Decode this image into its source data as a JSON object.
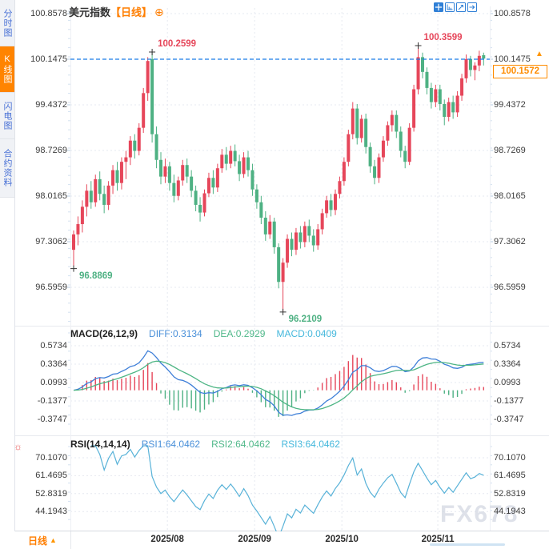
{
  "app": {
    "watermark": "FX678"
  },
  "header": {
    "symbol": "美元指数",
    "period_tag": "【日线】",
    "plus_icon": "⊕"
  },
  "sidebar": {
    "tabs": [
      {
        "label": "分时图",
        "active": false
      },
      {
        "label": "K线图",
        "active": true
      },
      {
        "label": "闪电图",
        "active": false
      },
      {
        "label": "合约资料",
        "active": false
      }
    ]
  },
  "toolbar": {
    "icons": [
      "crosshair",
      "axis-zoom",
      "box-zoom",
      "pan-right"
    ],
    "settings_glyph": "☼"
  },
  "bottom_bar": {
    "period_label": "日线",
    "arrow": "▲"
  },
  "colors": {
    "up": "#e6465a",
    "down": "#4eb183",
    "ref_line": "#1b7ce6",
    "accent": "#ff7e00",
    "diff_line": "#3e7fd8",
    "dea_line": "#4db584",
    "rsi_line": "#58b2d8",
    "grid": "#e6e8f0",
    "axis_text": "#3c3c3c",
    "watermark": "#d3d8e2",
    "sidebar_text": "#4a72d6",
    "sidebar_active_bg": "#ff8400",
    "icon_blue": "#2f7fd6"
  },
  "chart_data": [
    {
      "type": "candlestick",
      "symbol": "美元指数",
      "period": "日线",
      "y_ticks": [
        100.8578,
        100.1475,
        99.4372,
        98.7269,
        98.0165,
        97.3062,
        96.5959
      ],
      "reference_line": 100.1475,
      "last_price": "100.1572",
      "up_arrow": "▲",
      "annotations": [
        {
          "index": 18,
          "price": 100.2599,
          "label": "100.2599",
          "side": "above",
          "color": "#e6465a"
        },
        {
          "index": 79,
          "price": 100.3599,
          "label": "100.3599",
          "side": "above",
          "color": "#e6465a"
        },
        {
          "index": 0,
          "price": 96.8869,
          "label": "96.8869",
          "side": "below",
          "color": "#4eb183"
        },
        {
          "index": 48,
          "price": 96.2109,
          "label": "96.2109",
          "side": "below",
          "color": "#4eb183"
        }
      ],
      "x_axis": {
        "month_labels": [
          "2025/08",
          "2025/09",
          "2025/10",
          "2025/11"
        ],
        "month_start_indices": [
          22,
          42,
          62,
          84
        ]
      },
      "ohlc": [
        [
          97.18,
          97.48,
          96.8869,
          97.42
        ],
        [
          97.42,
          97.7,
          97.25,
          97.58
        ],
        [
          97.58,
          97.95,
          97.45,
          97.85
        ],
        [
          97.85,
          98.2,
          97.7,
          98.1
        ],
        [
          98.1,
          98.25,
          97.82,
          97.92
        ],
        [
          97.92,
          98.35,
          97.85,
          98.28
        ],
        [
          98.28,
          98.4,
          97.95,
          98.05
        ],
        [
          98.05,
          98.18,
          97.75,
          97.88
        ],
        [
          97.88,
          98.25,
          97.8,
          98.18
        ],
        [
          98.18,
          98.5,
          98.05,
          98.42
        ],
        [
          98.42,
          98.55,
          98.1,
          98.22
        ],
        [
          98.22,
          98.62,
          98.12,
          98.55
        ],
        [
          98.55,
          98.72,
          98.28,
          98.62
        ],
        [
          98.62,
          98.95,
          98.5,
          98.88
        ],
        [
          98.88,
          98.98,
          98.6,
          98.72
        ],
        [
          98.72,
          99.15,
          98.65,
          99.08
        ],
        [
          99.08,
          99.7,
          99.0,
          99.62
        ],
        [
          99.62,
          100.18,
          99.5,
          100.12
        ],
        [
          100.15,
          100.2599,
          98.85,
          98.98
        ],
        [
          98.98,
          99.1,
          98.45,
          98.58
        ],
        [
          98.58,
          98.7,
          98.2,
          98.32
        ],
        [
          98.32,
          98.6,
          98.22,
          98.48
        ],
        [
          98.48,
          98.55,
          98.1,
          98.22
        ],
        [
          98.22,
          98.35,
          97.92,
          98.02
        ],
        [
          98.02,
          98.32,
          97.95,
          98.26
        ],
        [
          98.26,
          98.58,
          98.18,
          98.5
        ],
        [
          98.5,
          98.6,
          98.22,
          98.32
        ],
        [
          98.32,
          98.42,
          98.0,
          98.1
        ],
        [
          98.1,
          98.18,
          97.78,
          97.88
        ],
        [
          97.88,
          98.0,
          97.62,
          97.76
        ],
        [
          97.76,
          98.12,
          97.7,
          98.06
        ],
        [
          98.06,
          98.38,
          98.0,
          98.3
        ],
        [
          98.3,
          98.42,
          98.05,
          98.15
        ],
        [
          98.15,
          98.52,
          98.08,
          98.45
        ],
        [
          98.45,
          98.75,
          98.38,
          98.66
        ],
        [
          98.66,
          98.78,
          98.42,
          98.52
        ],
        [
          98.52,
          98.8,
          98.45,
          98.72
        ],
        [
          98.72,
          98.82,
          98.48,
          98.56
        ],
        [
          98.56,
          98.66,
          98.25,
          98.36
        ],
        [
          98.36,
          98.7,
          98.3,
          98.62
        ],
        [
          98.62,
          98.72,
          98.32,
          98.42
        ],
        [
          98.42,
          98.52,
          98.02,
          98.12
        ],
        [
          98.12,
          98.2,
          97.82,
          97.92
        ],
        [
          97.92,
          98.02,
          97.58,
          97.68
        ],
        [
          97.68,
          97.78,
          97.32,
          97.42
        ],
        [
          97.42,
          97.72,
          97.35,
          97.62
        ],
        [
          97.62,
          97.68,
          97.12,
          97.22
        ],
        [
          97.22,
          97.28,
          96.58,
          96.68
        ],
        [
          96.68,
          97.05,
          96.2109,
          96.98
        ],
        [
          96.98,
          97.42,
          96.9,
          97.35
        ],
        [
          97.35,
          97.45,
          97.08,
          97.18
        ],
        [
          97.18,
          97.52,
          97.1,
          97.45
        ],
        [
          97.45,
          97.55,
          97.2,
          97.3
        ],
        [
          97.3,
          97.62,
          97.22,
          97.55
        ],
        [
          97.55,
          97.65,
          97.3,
          97.4
        ],
        [
          97.4,
          97.5,
          97.15,
          97.25
        ],
        [
          97.25,
          97.58,
          97.18,
          97.5
        ],
        [
          97.5,
          97.82,
          97.42,
          97.75
        ],
        [
          97.75,
          98.02,
          97.68,
          97.95
        ],
        [
          97.95,
          98.05,
          97.7,
          97.8
        ],
        [
          97.8,
          98.12,
          97.72,
          98.05
        ],
        [
          98.05,
          98.32,
          97.98,
          98.25
        ],
        [
          98.25,
          98.62,
          98.18,
          98.55
        ],
        [
          98.55,
          99.05,
          98.48,
          98.98
        ],
        [
          98.98,
          99.48,
          98.9,
          99.38
        ],
        [
          99.38,
          99.45,
          98.82,
          98.92
        ],
        [
          98.92,
          99.28,
          98.85,
          99.22
        ],
        [
          99.22,
          99.3,
          98.68,
          98.78
        ],
        [
          98.78,
          98.85,
          98.38,
          98.48
        ],
        [
          98.48,
          98.58,
          98.2,
          98.3
        ],
        [
          98.3,
          98.68,
          98.22,
          98.62
        ],
        [
          98.62,
          98.95,
          98.55,
          98.88
        ],
        [
          98.88,
          99.18,
          98.8,
          99.12
        ],
        [
          99.12,
          99.35,
          99.02,
          99.28
        ],
        [
          99.28,
          99.35,
          98.92,
          99.02
        ],
        [
          99.02,
          99.1,
          98.62,
          98.72
        ],
        [
          98.72,
          98.8,
          98.45,
          98.55
        ],
        [
          98.55,
          99.15,
          98.5,
          99.08
        ],
        [
          99.08,
          99.75,
          99.02,
          99.68
        ],
        [
          99.68,
          100.3599,
          99.6,
          100.18
        ],
        [
          100.18,
          100.25,
          99.85,
          99.95
        ],
        [
          99.95,
          100.02,
          99.6,
          99.7
        ],
        [
          99.7,
          99.78,
          99.38,
          99.48
        ],
        [
          99.48,
          99.75,
          99.4,
          99.68
        ],
        [
          99.68,
          99.75,
          99.35,
          99.45
        ],
        [
          99.45,
          99.52,
          99.12,
          99.25
        ],
        [
          99.25,
          99.55,
          99.18,
          99.48
        ],
        [
          99.48,
          99.58,
          99.22,
          99.32
        ],
        [
          99.32,
          99.65,
          99.25,
          99.58
        ],
        [
          99.58,
          99.92,
          99.5,
          99.85
        ],
        [
          99.85,
          100.22,
          99.78,
          100.15
        ],
        [
          100.15,
          100.2,
          99.88,
          99.98
        ],
        [
          99.98,
          100.1,
          99.82,
          100.05
        ],
        [
          100.05,
          100.28,
          99.96,
          100.2
        ],
        [
          100.21,
          100.25,
          100.05,
          100.1572
        ]
      ]
    },
    {
      "type": "macd",
      "header": {
        "name": "MACD(26,12,9)",
        "diff": "DIFF:0.3134",
        "dea": "DEA:0.2929",
        "macd": "MACD:0.0409"
      },
      "params": {
        "fast": 12,
        "slow": 26,
        "signal": 9
      },
      "y_ticks": [
        0.5734,
        0.3364,
        0.0993,
        -0.1377,
        -0.3747
      ]
    },
    {
      "type": "rsi",
      "header": {
        "name": "RSI(14,14,14)",
        "rsi1": "RSI1:64.0462",
        "rsi2": "RSI2:64.0462",
        "rsi3": "RSI3:64.0462"
      },
      "period": 14,
      "y_ticks": [
        70.107,
        61.4695,
        52.8319,
        44.1943
      ]
    }
  ]
}
